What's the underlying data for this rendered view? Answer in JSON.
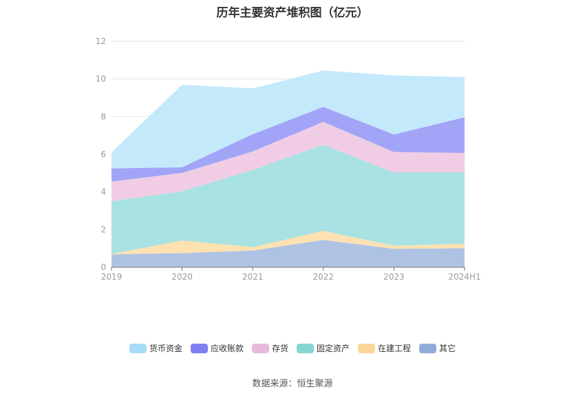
{
  "page": {
    "title": "历年主要资产堆积图（亿元）",
    "source": "数据来源：恒生聚源"
  },
  "chart_data": {
    "type": "area",
    "stacked": true,
    "title": "历年主要资产堆积图（亿元）",
    "categories": [
      "2019",
      "2020",
      "2021",
      "2022",
      "2023",
      "2024H1"
    ],
    "ylim": [
      0,
      12
    ],
    "yticks": [
      0,
      2,
      4,
      6,
      8,
      10,
      12
    ],
    "grid": true,
    "legend_position": "bottom",
    "series": [
      {
        "name": "其它",
        "color": "#aec3e4",
        "values": [
          0.68,
          0.75,
          0.89,
          1.45,
          0.98,
          1.01
        ]
      },
      {
        "name": "在建工程",
        "color": "#fde1b1",
        "values": [
          0.02,
          0.67,
          0.18,
          0.48,
          0.16,
          0.24
        ]
      },
      {
        "name": "固定资产",
        "color": "#a8e2e2",
        "values": [
          2.8,
          2.62,
          4.1,
          4.57,
          3.89,
          3.78
        ]
      },
      {
        "name": "存货",
        "color": "#f0cde5",
        "values": [
          1.05,
          0.97,
          0.98,
          1.22,
          1.09,
          1.04
        ]
      },
      {
        "name": "应收账款",
        "color": "#a2a5f7",
        "values": [
          0.7,
          0.3,
          0.92,
          0.8,
          0.93,
          1.9
        ]
      },
      {
        "name": "货币资金",
        "color": "#c4e9fb",
        "values": [
          0.85,
          4.38,
          2.43,
          1.93,
          3.14,
          2.13
        ]
      }
    ],
    "legend": [
      {
        "name": "货币资金",
        "color": "#a6dcf7"
      },
      {
        "name": "应收账款",
        "color": "#7d7ff2"
      },
      {
        "name": "存货",
        "color": "#e8b9dc"
      },
      {
        "name": "固定资产",
        "color": "#86d4d4"
      },
      {
        "name": "在建工程",
        "color": "#fcd699"
      },
      {
        "name": "其它",
        "color": "#8fabd9"
      }
    ]
  }
}
